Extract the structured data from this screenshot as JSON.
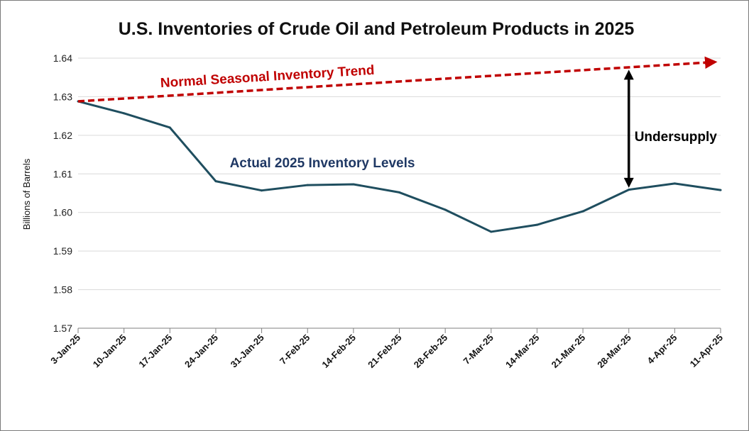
{
  "chart_data": {
    "type": "line",
    "title": "U.S. Inventories of Crude Oil and Petroleum Products in 2025",
    "ylabel": "Billions of Barrels",
    "xlabel": "",
    "ylim": [
      1.57,
      1.64
    ],
    "yticks": [
      "1.57",
      "1.58",
      "1.59",
      "1.60",
      "1.61",
      "1.62",
      "1.63",
      "1.64"
    ],
    "grid": true,
    "categories": [
      "3-Jan-25",
      "10-Jan-25",
      "17-Jan-25",
      "24-Jan-25",
      "31-Jan-25",
      "7-Feb-25",
      "14-Feb-25",
      "21-Feb-25",
      "28-Feb-25",
      "7-Mar-25",
      "14-Mar-25",
      "21-Mar-25",
      "28-Mar-25",
      "4-Apr-25",
      "11-Apr-25"
    ],
    "series": [
      {
        "values": [
          1.6288,
          1.6257,
          1.622,
          1.6081,
          1.6057,
          1.6071,
          1.6073,
          1.6052,
          1.6007,
          1.595,
          1.5968,
          1.6003,
          1.6059,
          1.6075,
          1.6058
        ],
        "color": "#1f4e5f"
      }
    ],
    "annotations": {
      "trend_label": "Normal Seasonal Inventory Trend",
      "trend_color": "#c00000",
      "trend_start": {
        "x": "3-Jan-25",
        "y": 1.6288
      },
      "trend_end": {
        "x": "11-Apr-25",
        "y": 1.639
      },
      "actual_label": "Actual 2025 Inventory Levels",
      "actual_color": "#1f3864",
      "gap_label": "Undersupply",
      "gap_color": "#000000",
      "gap_at": "28-Mar-25",
      "gap_top": 1.637,
      "gap_bottom": 1.6064
    }
  }
}
